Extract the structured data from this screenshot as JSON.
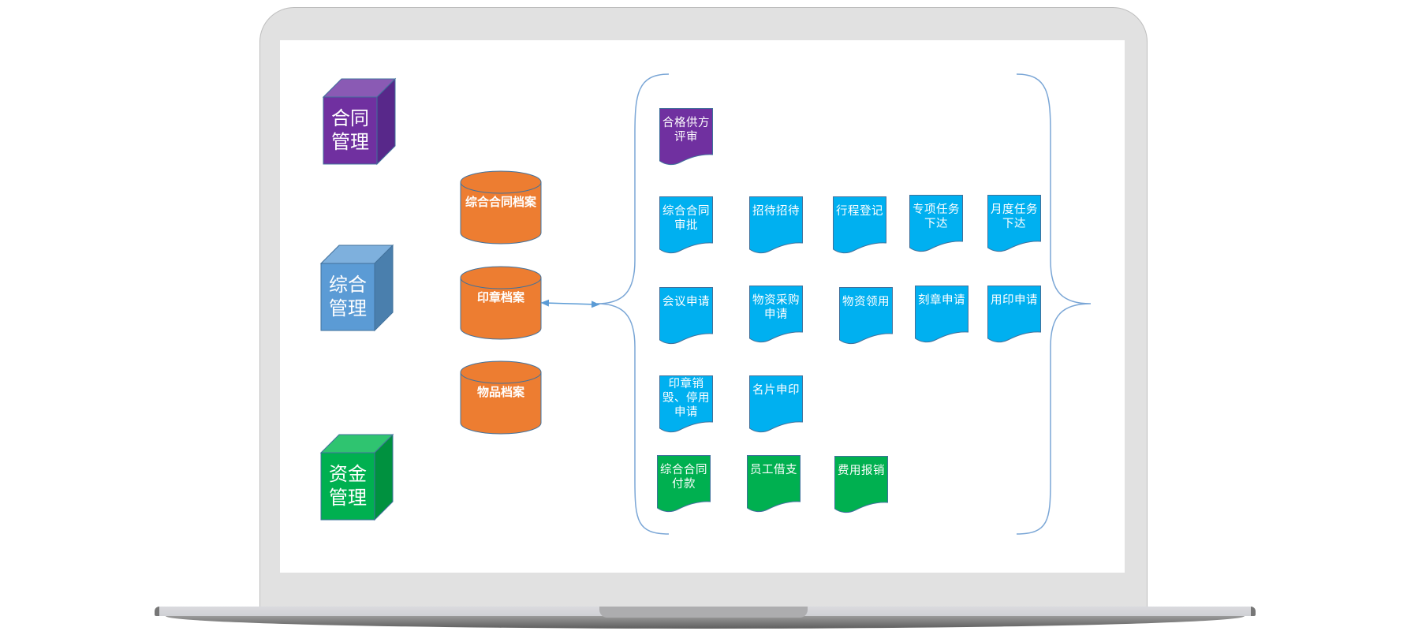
{
  "colors": {
    "purple": "#7030a0",
    "blue_cube": "#5b9bd5",
    "green": "#00b050",
    "orange": "#ed7d31",
    "cyan": "#00b0f0",
    "brace": "#7aa6d6"
  },
  "cubes": [
    {
      "label": "合同\n管理",
      "color": "#7030a0",
      "top": "#8a5ab4",
      "side": "#58288a"
    },
    {
      "label": "综合\n管理",
      "color": "#5b9bd5",
      "top": "#7eb0dd",
      "side": "#4a7fad"
    },
    {
      "label": "资金\n管理",
      "color": "#00b050",
      "top": "#2fc470",
      "side": "#00913f"
    }
  ],
  "archives": [
    {
      "label": "综合合同档案"
    },
    {
      "label": "印章档案"
    },
    {
      "label": "物品档案"
    }
  ],
  "documents": [
    {
      "label": "合格供方评审",
      "color": "#7030a0"
    },
    {
      "label": "综合合同审批",
      "color": "#00b0f0"
    },
    {
      "label": "招待招待",
      "color": "#00b0f0"
    },
    {
      "label": "行程登记",
      "color": "#00b0f0"
    },
    {
      "label": "专项任务下达",
      "color": "#00b0f0"
    },
    {
      "label": "月度任务下达",
      "color": "#00b0f0"
    },
    {
      "label": "会议申请",
      "color": "#00b0f0"
    },
    {
      "label": "物资采购申请",
      "color": "#00b0f0"
    },
    {
      "label": "物资领用",
      "color": "#00b0f0"
    },
    {
      "label": "刻章申请",
      "color": "#00b0f0"
    },
    {
      "label": "用印申请",
      "color": "#00b0f0"
    },
    {
      "label": "印章销毁、停用申请",
      "color": "#00b0f0"
    },
    {
      "label": "名片申印",
      "color": "#00b0f0"
    },
    {
      "label": "综合合同付款",
      "color": "#00b050"
    },
    {
      "label": "员工借支",
      "color": "#00b050"
    },
    {
      "label": "费用报销",
      "color": "#00b050"
    }
  ]
}
